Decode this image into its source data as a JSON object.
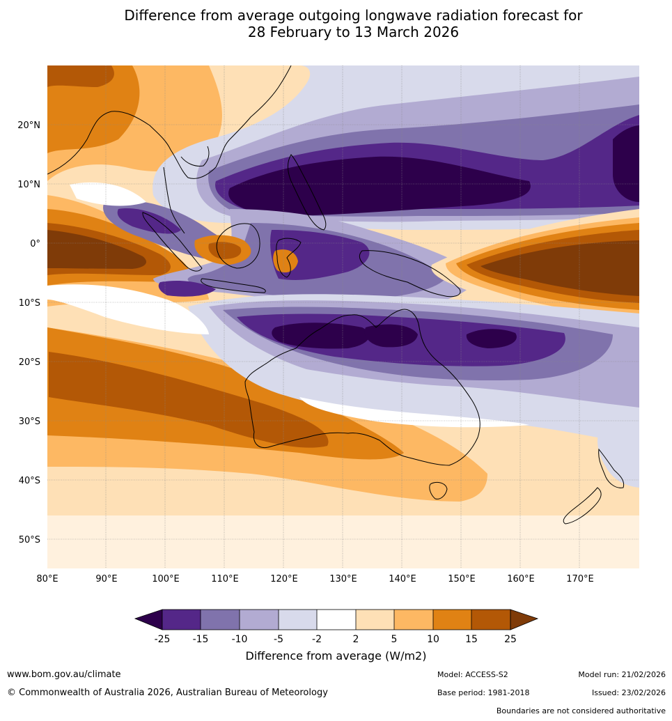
{
  "title": {
    "line1": "Difference from average outgoing longwave radiation forecast for",
    "line2": "28 February to 13 March 2026"
  },
  "map": {
    "lat_labels": [
      "20°N",
      "10°N",
      "0°",
      "10°S",
      "20°S",
      "30°S",
      "40°S",
      "50°S"
    ],
    "lon_labels": [
      "80°E",
      "90°E",
      "100°E",
      "110°E",
      "120°E",
      "130°E",
      "140°E",
      "150°E",
      "160°E",
      "170°E"
    ],
    "palette": {
      "neg25": "#2d004b",
      "neg15": "#542788",
      "neg10": "#8073ac",
      "neg5": "#b2abd2",
      "neg2": "#d8daeb",
      "zero": "#ffffff",
      "pos2": "#fee0b6",
      "pos5": "#fdb863",
      "pos10": "#e08214",
      "pos15": "#b35806",
      "pos25": "#7f3b08"
    }
  },
  "legend": {
    "ticks": [
      "-25",
      "-15",
      "-10",
      "-5",
      "-2",
      "2",
      "5",
      "10",
      "15",
      "25"
    ],
    "title": "Difference from average (W/m2)"
  },
  "footer": {
    "url": "www.bom.gov.au/climate",
    "copyright": "© Commonwealth of Australia 2026, Australian Bureau of Meteorology",
    "model": "Model: ACCESS-S2",
    "base_period": "Base period: 1981-2018",
    "model_run": "Model run: 21/02/2026",
    "issued": "Issued: 23/02/2026",
    "disclaimer": "Boundaries are not considered authoritative"
  }
}
